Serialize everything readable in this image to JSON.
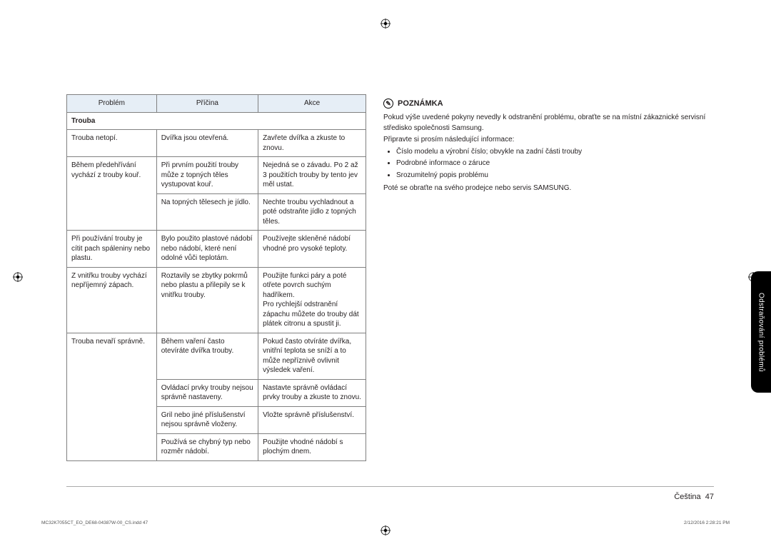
{
  "colors": {
    "header_bg": "#e6eef6",
    "border": "#808080",
    "text": "#231f20",
    "tab_bg": "#000000",
    "tab_text": "#ffffff"
  },
  "typography": {
    "body_fontsize_pt": 10,
    "header_fontsize_pt": 10,
    "note_title_fontsize_pt": 11,
    "footer_fontsize_pt": 11,
    "meta_fontsize_pt": 6.5
  },
  "table": {
    "headers": [
      "Problém",
      "Příčina",
      "Akce"
    ],
    "section": "Trouba",
    "column_widths_pct": [
      30,
      34,
      36
    ],
    "groups": [
      {
        "problem": "Trouba netopí.",
        "rows": [
          {
            "cause": "Dvířka jsou otevřená.",
            "action": "Zavřete dvířka a zkuste to znovu."
          }
        ]
      },
      {
        "problem": "Během předehřívání vychází z trouby kouř.",
        "rows": [
          {
            "cause": "Při prvním použití trouby může z topných těles vystupovat kouř.",
            "action": "Nejedná se o závadu. Po 2 až 3 použitích trouby by tento jev měl ustat."
          },
          {
            "cause": "Na topných tělesech je jídlo.",
            "action": "Nechte troubu vychladnout a poté odstraňte jídlo z topných těles."
          }
        ]
      },
      {
        "problem": "Při používání trouby je cítit pach spáleniny nebo plastu.",
        "rows": [
          {
            "cause": "Bylo použito plastové nádobí nebo nádobí, které není odolné vůči teplotám.",
            "action": "Používejte skleněné nádobí vhodné pro vysoké teploty."
          }
        ]
      },
      {
        "problem": "Z vnitřku trouby vychází nepříjemný zápach.",
        "rows": [
          {
            "cause": "Roztavily se zbytky pokrmů nebo plastu a přilepily se k vnitřku trouby.",
            "action": "Použijte funkci páry a poté otřete povrch suchým hadříkem.\nPro rychlejší odstranění zápachu můžete do trouby dát plátek citronu a spustit ji."
          }
        ]
      },
      {
        "problem": "Trouba nevaří správně.",
        "rows": [
          {
            "cause": "Během vaření často otevíráte dvířka trouby.",
            "action": "Pokud často otvíráte dvířka, vnitřní teplota se sníží a to může nepříznivě ovlivnit výsledek vaření."
          },
          {
            "cause": "Ovládací prvky trouby nejsou správně nastaveny.",
            "action": "Nastavte správně ovládací prvky trouby a zkuste to znovu."
          },
          {
            "cause": "Gril nebo jiné příslušenství nejsou správně vloženy.",
            "action": "Vložte správně příslušenství."
          },
          {
            "cause": "Používá se chybný typ nebo rozměr nádobí.",
            "action": "Použijte vhodné nádobí s plochým dnem."
          }
        ]
      }
    ]
  },
  "note": {
    "title": "POZNÁMKA",
    "lead": "Pokud výše uvedené pokyny nevedly k odstranění problému, obraťte se na místní zákaznické servisní středisko společnosti Samsung.",
    "prep": "Připravte si prosím následující informace:",
    "bullets": [
      "Číslo modelu a výrobní číslo; obvykle na zadní části trouby",
      "Podrobné informace o záruce",
      "Srozumitelný popis problému"
    ],
    "tail": "Poté se obraťte na svého prodejce nebo servis SAMSUNG."
  },
  "side_tab": "Odstraňování problémů",
  "footer": {
    "lang": "Čeština",
    "page": "47"
  },
  "meta": {
    "left": "MC32K7055CT_EO_DE68-04387W-00_CS.indd   47",
    "right": "2/12/2016   2:28:21 PM"
  }
}
